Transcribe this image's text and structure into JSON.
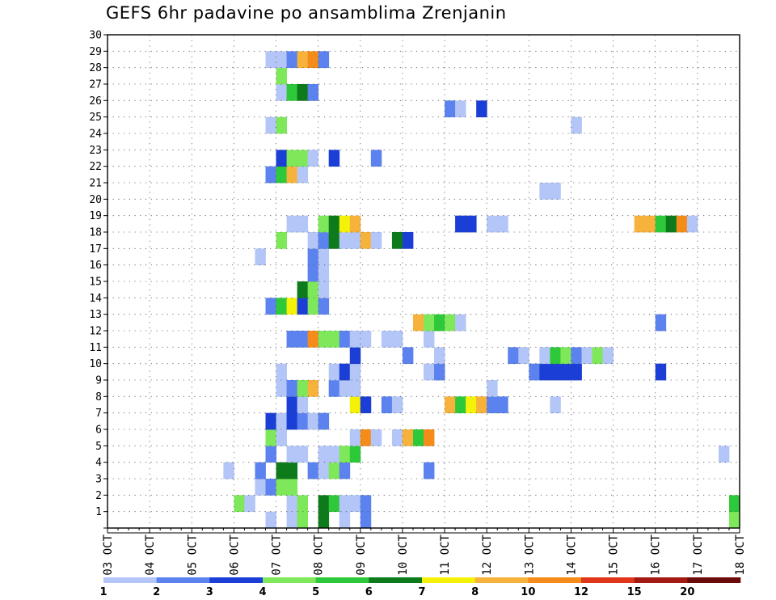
{
  "chart_data": {
    "type": "heatmap",
    "title": "GEFS 6hr padavine po ansamblima Zrenjanin",
    "xlabel": "",
    "ylabel": "",
    "x_ticks": [
      "03 OCT",
      "04 OCT",
      "05 OCT",
      "06 OCT",
      "07 OCT",
      "08 OCT",
      "09 OCT",
      "10 OCT",
      "11 OCT",
      "12 OCT",
      "13 OCT",
      "14 OCT",
      "15 OCT",
      "16 OCT",
      "17 OCT",
      "18 OCT"
    ],
    "x_range_days": [
      3,
      18
    ],
    "y_ticks": [
      1,
      2,
      3,
      4,
      5,
      6,
      7,
      8,
      9,
      10,
      11,
      12,
      13,
      14,
      15,
      16,
      17,
      18,
      19,
      20,
      21,
      22,
      23,
      24,
      25,
      26,
      27,
      28,
      29,
      30
    ],
    "ylim": [
      0,
      30
    ],
    "grid": true,
    "colorbar": {
      "labels": [
        "1",
        "2",
        "3",
        "4",
        "5",
        "6",
        "7",
        "8",
        "10",
        "12",
        "15",
        "20"
      ],
      "colors": [
        "#b3c6f7",
        "#5b82ee",
        "#1a3ed6",
        "#7ee85a",
        "#2ec93a",
        "#0d7a1c",
        "#f5f20a",
        "#f7b23c",
        "#f58c1a",
        "#e0361a",
        "#a31a12",
        "#6b0b0b"
      ]
    },
    "units_note": "each cell = one 6-hour period; x = day of October (cell start), y = ensemble member, c = colour class index (0 = 1-2 mm ... 11 = >20 mm)",
    "cells": [
      {
        "x": 6.75,
        "y": 0,
        "c": 0
      },
      {
        "x": 7.25,
        "y": 0,
        "c": 0
      },
      {
        "x": 7.5,
        "y": 0,
        "c": 3
      },
      {
        "x": 8.0,
        "y": 0,
        "c": 5
      },
      {
        "x": 8.5,
        "y": 0,
        "c": 0
      },
      {
        "x": 9.0,
        "y": 0,
        "c": 1
      },
      {
        "x": 17.75,
        "y": 0,
        "c": 3
      },
      {
        "x": 6.0,
        "y": 1,
        "c": 3
      },
      {
        "x": 6.25,
        "y": 1,
        "c": 0
      },
      {
        "x": 7.25,
        "y": 1,
        "c": 0
      },
      {
        "x": 7.5,
        "y": 1,
        "c": 3
      },
      {
        "x": 8.0,
        "y": 1,
        "c": 5
      },
      {
        "x": 8.25,
        "y": 1,
        "c": 4
      },
      {
        "x": 8.5,
        "y": 1,
        "c": 0
      },
      {
        "x": 8.75,
        "y": 1,
        "c": 0
      },
      {
        "x": 9.0,
        "y": 1,
        "c": 1
      },
      {
        "x": 17.75,
        "y": 1,
        "c": 4
      },
      {
        "x": 6.5,
        "y": 2,
        "c": 0
      },
      {
        "x": 6.75,
        "y": 2,
        "c": 1
      },
      {
        "x": 7.0,
        "y": 2,
        "c": 3
      },
      {
        "x": 7.25,
        "y": 2,
        "c": 3
      },
      {
        "x": 5.75,
        "y": 3,
        "c": 0
      },
      {
        "x": 6.5,
        "y": 3,
        "c": 1
      },
      {
        "x": 7.0,
        "y": 3,
        "c": 5
      },
      {
        "x": 7.25,
        "y": 3,
        "c": 5
      },
      {
        "x": 7.75,
        "y": 3,
        "c": 1
      },
      {
        "x": 8.0,
        "y": 3,
        "c": 0
      },
      {
        "x": 8.25,
        "y": 3,
        "c": 3
      },
      {
        "x": 8.5,
        "y": 3,
        "c": 1
      },
      {
        "x": 10.5,
        "y": 3,
        "c": 1
      },
      {
        "x": 6.75,
        "y": 4,
        "c": 1
      },
      {
        "x": 7.25,
        "y": 4,
        "c": 0
      },
      {
        "x": 7.5,
        "y": 4,
        "c": 0
      },
      {
        "x": 8.0,
        "y": 4,
        "c": 0
      },
      {
        "x": 8.25,
        "y": 4,
        "c": 0
      },
      {
        "x": 8.5,
        "y": 4,
        "c": 3
      },
      {
        "x": 8.75,
        "y": 4,
        "c": 4
      },
      {
        "x": 17.5,
        "y": 4,
        "c": 0
      },
      {
        "x": 6.75,
        "y": 5,
        "c": 3
      },
      {
        "x": 7.0,
        "y": 5,
        "c": 0
      },
      {
        "x": 8.75,
        "y": 5,
        "c": 0
      },
      {
        "x": 9.0,
        "y": 5,
        "c": 8
      },
      {
        "x": 9.25,
        "y": 5,
        "c": 0
      },
      {
        "x": 9.75,
        "y": 5,
        "c": 0
      },
      {
        "x": 10.0,
        "y": 5,
        "c": 7
      },
      {
        "x": 10.25,
        "y": 5,
        "c": 4
      },
      {
        "x": 10.5,
        "y": 5,
        "c": 8
      },
      {
        "x": 6.75,
        "y": 6,
        "c": 2
      },
      {
        "x": 7.0,
        "y": 6,
        "c": 0
      },
      {
        "x": 7.25,
        "y": 6,
        "c": 2
      },
      {
        "x": 7.5,
        "y": 6,
        "c": 1
      },
      {
        "x": 7.75,
        "y": 6,
        "c": 0
      },
      {
        "x": 8.0,
        "y": 6,
        "c": 1
      },
      {
        "x": 7.25,
        "y": 7,
        "c": 2
      },
      {
        "x": 7.5,
        "y": 7,
        "c": 0
      },
      {
        "x": 8.75,
        "y": 7,
        "c": 6
      },
      {
        "x": 9.0,
        "y": 7,
        "c": 2
      },
      {
        "x": 9.5,
        "y": 7,
        "c": 1
      },
      {
        "x": 9.75,
        "y": 7,
        "c": 0
      },
      {
        "x": 11.0,
        "y": 7,
        "c": 7
      },
      {
        "x": 11.25,
        "y": 7,
        "c": 4
      },
      {
        "x": 11.5,
        "y": 7,
        "c": 6
      },
      {
        "x": 11.75,
        "y": 7,
        "c": 7
      },
      {
        "x": 12.0,
        "y": 7,
        "c": 1
      },
      {
        "x": 12.25,
        "y": 7,
        "c": 1
      },
      {
        "x": 13.5,
        "y": 7,
        "c": 0
      },
      {
        "x": 7.0,
        "y": 8,
        "c": 0
      },
      {
        "x": 7.25,
        "y": 8,
        "c": 1
      },
      {
        "x": 7.5,
        "y": 8,
        "c": 3
      },
      {
        "x": 7.75,
        "y": 8,
        "c": 7
      },
      {
        "x": 8.25,
        "y": 8,
        "c": 1
      },
      {
        "x": 8.5,
        "y": 8,
        "c": 0
      },
      {
        "x": 8.75,
        "y": 8,
        "c": 0
      },
      {
        "x": 12.0,
        "y": 8,
        "c": 0
      },
      {
        "x": 7.0,
        "y": 9,
        "c": 0
      },
      {
        "x": 8.25,
        "y": 9,
        "c": 0
      },
      {
        "x": 8.5,
        "y": 9,
        "c": 2
      },
      {
        "x": 8.75,
        "y": 9,
        "c": 0
      },
      {
        "x": 10.5,
        "y": 9,
        "c": 0
      },
      {
        "x": 10.75,
        "y": 9,
        "c": 1
      },
      {
        "x": 13.0,
        "y": 9,
        "c": 1
      },
      {
        "x": 13.25,
        "y": 9,
        "c": 2
      },
      {
        "x": 13.5,
        "y": 9,
        "c": 2
      },
      {
        "x": 13.75,
        "y": 9,
        "c": 2
      },
      {
        "x": 14.0,
        "y": 9,
        "c": 2
      },
      {
        "x": 16.0,
        "y": 9,
        "c": 2
      },
      {
        "x": 8.75,
        "y": 10,
        "c": 2
      },
      {
        "x": 10.0,
        "y": 10,
        "c": 1
      },
      {
        "x": 10.75,
        "y": 10,
        "c": 0
      },
      {
        "x": 12.5,
        "y": 10,
        "c": 1
      },
      {
        "x": 12.75,
        "y": 10,
        "c": 0
      },
      {
        "x": 13.25,
        "y": 10,
        "c": 0
      },
      {
        "x": 13.5,
        "y": 10,
        "c": 4
      },
      {
        "x": 13.75,
        "y": 10,
        "c": 3
      },
      {
        "x": 14.0,
        "y": 10,
        "c": 1
      },
      {
        "x": 14.25,
        "y": 10,
        "c": 0
      },
      {
        "x": 14.5,
        "y": 10,
        "c": 3
      },
      {
        "x": 14.75,
        "y": 10,
        "c": 0
      },
      {
        "x": 7.25,
        "y": 11,
        "c": 1
      },
      {
        "x": 7.5,
        "y": 11,
        "c": 1
      },
      {
        "x": 7.75,
        "y": 11,
        "c": 8
      },
      {
        "x": 8.0,
        "y": 11,
        "c": 3
      },
      {
        "x": 8.25,
        "y": 11,
        "c": 3
      },
      {
        "x": 8.5,
        "y": 11,
        "c": 1
      },
      {
        "x": 8.75,
        "y": 11,
        "c": 0
      },
      {
        "x": 9.0,
        "y": 11,
        "c": 0
      },
      {
        "x": 9.5,
        "y": 11,
        "c": 0
      },
      {
        "x": 9.75,
        "y": 11,
        "c": 0
      },
      {
        "x": 10.5,
        "y": 11,
        "c": 0
      },
      {
        "x": 10.25,
        "y": 12,
        "c": 7
      },
      {
        "x": 10.5,
        "y": 12,
        "c": 3
      },
      {
        "x": 10.75,
        "y": 12,
        "c": 4
      },
      {
        "x": 11.0,
        "y": 12,
        "c": 3
      },
      {
        "x": 11.25,
        "y": 12,
        "c": 0
      },
      {
        "x": 16.0,
        "y": 12,
        "c": 1
      },
      {
        "x": 6.75,
        "y": 13,
        "c": 1
      },
      {
        "x": 7.0,
        "y": 13,
        "c": 4
      },
      {
        "x": 7.25,
        "y": 13,
        "c": 6
      },
      {
        "x": 7.5,
        "y": 13,
        "c": 2
      },
      {
        "x": 7.75,
        "y": 13,
        "c": 3
      },
      {
        "x": 8.0,
        "y": 13,
        "c": 1
      },
      {
        "x": 7.5,
        "y": 14,
        "c": 5
      },
      {
        "x": 7.75,
        "y": 14,
        "c": 3
      },
      {
        "x": 8.0,
        "y": 14,
        "c": 0
      },
      {
        "x": 7.75,
        "y": 15,
        "c": 1
      },
      {
        "x": 8.0,
        "y": 15,
        "c": 0
      },
      {
        "x": 6.5,
        "y": 16,
        "c": 0
      },
      {
        "x": 7.75,
        "y": 16,
        "c": 1
      },
      {
        "x": 8.0,
        "y": 16,
        "c": 0
      },
      {
        "x": 7.0,
        "y": 17,
        "c": 3
      },
      {
        "x": 7.75,
        "y": 17,
        "c": 0
      },
      {
        "x": 8.0,
        "y": 17,
        "c": 1
      },
      {
        "x": 8.25,
        "y": 17,
        "c": 5
      },
      {
        "x": 8.5,
        "y": 17,
        "c": 0
      },
      {
        "x": 8.75,
        "y": 17,
        "c": 0
      },
      {
        "x": 9.0,
        "y": 17,
        "c": 7
      },
      {
        "x": 9.25,
        "y": 17,
        "c": 0
      },
      {
        "x": 9.75,
        "y": 17,
        "c": 5
      },
      {
        "x": 10.0,
        "y": 17,
        "c": 2
      },
      {
        "x": 7.25,
        "y": 18,
        "c": 0
      },
      {
        "x": 7.5,
        "y": 18,
        "c": 0
      },
      {
        "x": 8.0,
        "y": 18,
        "c": 3
      },
      {
        "x": 8.25,
        "y": 18,
        "c": 5
      },
      {
        "x": 8.5,
        "y": 18,
        "c": 6
      },
      {
        "x": 8.75,
        "y": 18,
        "c": 7
      },
      {
        "x": 11.25,
        "y": 18,
        "c": 2
      },
      {
        "x": 11.5,
        "y": 18,
        "c": 2
      },
      {
        "x": 12.0,
        "y": 18,
        "c": 0
      },
      {
        "x": 12.25,
        "y": 18,
        "c": 0
      },
      {
        "x": 15.5,
        "y": 18,
        "c": 7
      },
      {
        "x": 15.75,
        "y": 18,
        "c": 7
      },
      {
        "x": 16.0,
        "y": 18,
        "c": 4
      },
      {
        "x": 16.25,
        "y": 18,
        "c": 5
      },
      {
        "x": 16.5,
        "y": 18,
        "c": 8
      },
      {
        "x": 16.75,
        "y": 18,
        "c": 0
      },
      {
        "x": 13.25,
        "y": 20,
        "c": 0
      },
      {
        "x": 13.5,
        "y": 20,
        "c": 0
      },
      {
        "x": 6.75,
        "y": 21,
        "c": 1
      },
      {
        "x": 7.0,
        "y": 21,
        "c": 4
      },
      {
        "x": 7.25,
        "y": 21,
        "c": 7
      },
      {
        "x": 7.5,
        "y": 21,
        "c": 0
      },
      {
        "x": 7.0,
        "y": 22,
        "c": 2
      },
      {
        "x": 7.25,
        "y": 22,
        "c": 3
      },
      {
        "x": 7.5,
        "y": 22,
        "c": 3
      },
      {
        "x": 7.75,
        "y": 22,
        "c": 0
      },
      {
        "x": 8.25,
        "y": 22,
        "c": 2
      },
      {
        "x": 9.25,
        "y": 22,
        "c": 1
      },
      {
        "x": 6.75,
        "y": 24,
        "c": 0
      },
      {
        "x": 7.0,
        "y": 24,
        "c": 3
      },
      {
        "x": 14.0,
        "y": 24,
        "c": 0
      },
      {
        "x": 11.0,
        "y": 25,
        "c": 1
      },
      {
        "x": 11.25,
        "y": 25,
        "c": 0
      },
      {
        "x": 11.75,
        "y": 25,
        "c": 2
      },
      {
        "x": 7.0,
        "y": 26,
        "c": 0
      },
      {
        "x": 7.25,
        "y": 26,
        "c": 4
      },
      {
        "x": 7.5,
        "y": 26,
        "c": 5
      },
      {
        "x": 7.75,
        "y": 26,
        "c": 1
      },
      {
        "x": 7.0,
        "y": 27,
        "c": 3
      },
      {
        "x": 6.75,
        "y": 28,
        "c": 0
      },
      {
        "x": 7.0,
        "y": 28,
        "c": 0
      },
      {
        "x": 7.25,
        "y": 28,
        "c": 1
      },
      {
        "x": 7.5,
        "y": 28,
        "c": 7
      },
      {
        "x": 7.75,
        "y": 28,
        "c": 8
      },
      {
        "x": 8.0,
        "y": 28,
        "c": 1
      }
    ]
  }
}
